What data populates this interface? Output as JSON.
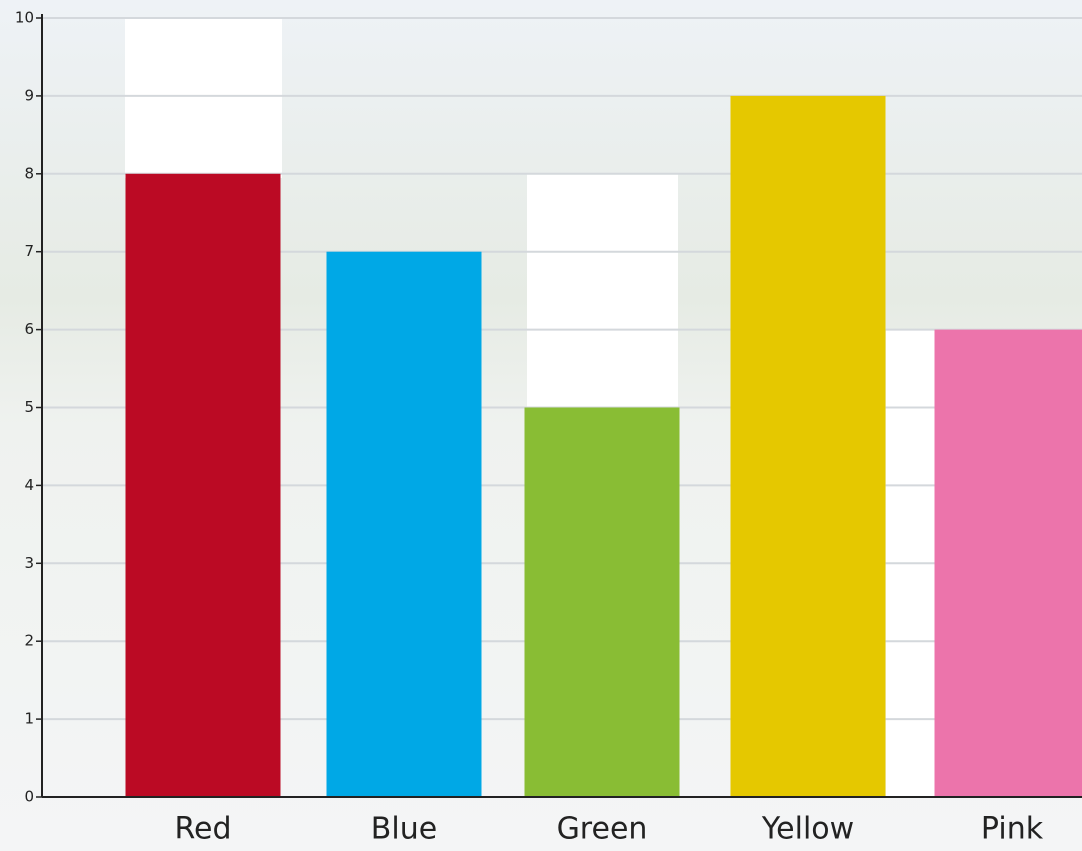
{
  "chart_data": {
    "type": "bar",
    "categories": [
      "Red",
      "Blue",
      "Green",
      "Yellow",
      "Pink"
    ],
    "values": [
      8,
      7,
      5,
      9,
      6
    ],
    "colors": [
      "#bb0a24",
      "#00a8e6",
      "#89bd34",
      "#e5c800",
      "#ec74ab"
    ],
    "ylim": [
      0,
      10
    ],
    "yticks": [
      0,
      1,
      2,
      3,
      4,
      5,
      6,
      7,
      8,
      9,
      10
    ],
    "grid": true
  }
}
